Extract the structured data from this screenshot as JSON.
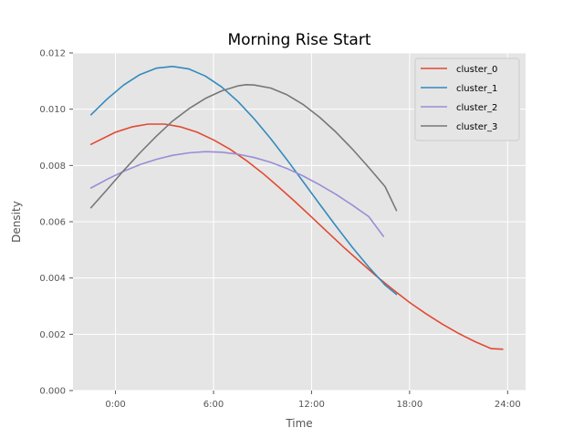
{
  "chart_data": {
    "type": "line",
    "title": "Morning Rise Start",
    "xlabel": "Time",
    "ylabel": "Density",
    "xlim": [
      -2.6,
      25.1
    ],
    "ylim": [
      0,
      0.012
    ],
    "x_ticks": [
      0,
      6,
      12,
      18,
      24
    ],
    "x_tick_labels": [
      "0:00",
      "6:00",
      "12:00",
      "18:00",
      "24:00"
    ],
    "y_ticks": [
      0,
      0.002,
      0.004,
      0.006,
      0.008,
      0.01,
      0.012
    ],
    "y_tick_labels": [
      "0.000",
      "0.002",
      "0.004",
      "0.006",
      "0.008",
      "0.010",
      "0.012"
    ],
    "grid": true,
    "legend_position": "top-right",
    "series": [
      {
        "name": "cluster_0",
        "color": "#E24A33",
        "x": [
          -1.5,
          0,
          1,
          2,
          3,
          4,
          5,
          6,
          7,
          8,
          9,
          10,
          11,
          12,
          13,
          14,
          15,
          16,
          17,
          18,
          19,
          20,
          21,
          22,
          23,
          23.7
        ],
        "y": [
          0.00875,
          0.00918,
          0.00937,
          0.00947,
          0.00947,
          0.00937,
          0.00918,
          0.00891,
          0.00858,
          0.00818,
          0.00773,
          0.00723,
          0.00671,
          0.00617,
          0.00562,
          0.00508,
          0.00456,
          0.00405,
          0.00358,
          0.00313,
          0.00273,
          0.00236,
          0.00203,
          0.00174,
          0.00149,
          0.00147
        ]
      },
      {
        "name": "cluster_1",
        "color": "#348ABD",
        "x": [
          -1.5,
          -0.5,
          0.5,
          1.5,
          2.5,
          3.5,
          4.5,
          5.5,
          6.5,
          7.5,
          8.5,
          9.5,
          10.5,
          11.5,
          12.5,
          13.5,
          14.5,
          15.5,
          16.5,
          17.2
        ],
        "y": [
          0.0098,
          0.01037,
          0.01086,
          0.01123,
          0.01146,
          0.01152,
          0.01143,
          0.01118,
          0.01079,
          0.01027,
          0.00965,
          0.00895,
          0.0082,
          0.00741,
          0.00662,
          0.00584,
          0.00509,
          0.00439,
          0.00375,
          0.00342
        ]
      },
      {
        "name": "cluster_2",
        "color": "#988ED5",
        "x": [
          -1.5,
          -0.5,
          0.5,
          1.5,
          2.5,
          3.5,
          4.5,
          5.5,
          6.5,
          7.5,
          8.5,
          9.5,
          10.5,
          11.5,
          12.5,
          13.5,
          14.5,
          15.5,
          16.4
        ],
        "y": [
          0.0072,
          0.00751,
          0.00779,
          0.00803,
          0.00822,
          0.00836,
          0.00845,
          0.00849,
          0.00847,
          0.0084,
          0.00828,
          0.00811,
          0.00789,
          0.00762,
          0.00731,
          0.00697,
          0.00659,
          0.00618,
          0.00548
        ]
      },
      {
        "name": "cluster_3",
        "color": "#777777",
        "x": [
          -1.5,
          -0.5,
          0.5,
          1.5,
          2.5,
          3.5,
          4.5,
          5.5,
          6.5,
          7.5,
          8,
          8.5,
          9.5,
          10.5,
          11.5,
          12.5,
          13.5,
          14.5,
          15.5,
          16.5,
          17.2
        ],
        "y": [
          0.0065,
          0.00715,
          0.00782,
          0.00845,
          0.00904,
          0.00958,
          0.01002,
          0.01038,
          0.01065,
          0.01083,
          0.01087,
          0.01086,
          0.01075,
          0.01051,
          0.01016,
          0.00971,
          0.00918,
          0.00858,
          0.00793,
          0.00725,
          0.0064
        ]
      }
    ]
  }
}
